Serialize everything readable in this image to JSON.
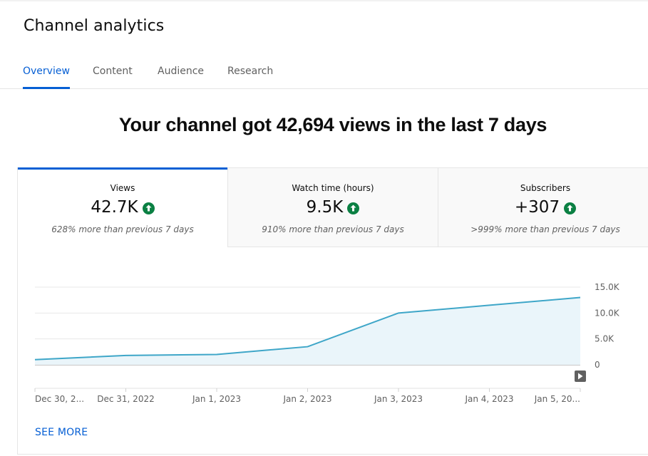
{
  "page": {
    "title": "Channel analytics"
  },
  "tabs": [
    {
      "label": "Overview",
      "active": true
    },
    {
      "label": "Content",
      "active": false
    },
    {
      "label": "Audience",
      "active": false
    },
    {
      "label": "Research",
      "active": false
    }
  ],
  "headline": "Your channel got 42,694 views in the last 7 days",
  "metrics": [
    {
      "label": "Views",
      "value": "42.7K",
      "change": "628% more than previous 7 days",
      "trend": "up",
      "active": true
    },
    {
      "label": "Watch time (hours)",
      "value": "9.5K",
      "change": "910% more than previous 7 days",
      "trend": "up",
      "active": false
    },
    {
      "label": "Subscribers",
      "value": "+307",
      "change": ">999% more than previous 7 days",
      "trend": "up",
      "active": false
    }
  ],
  "chart_data": {
    "type": "area",
    "x": [
      "Dec 30, 2...",
      "Dec 31, 2022",
      "Jan 1, 2023",
      "Jan 2, 2023",
      "Jan 3, 2023",
      "Jan 4, 2023",
      "Jan 5, 20..."
    ],
    "series": [
      {
        "values": [
          1000,
          1800,
          2000,
          3500,
          10000,
          11500,
          13000
        ]
      }
    ],
    "yticks": [
      {
        "value": 15000,
        "label": "15.0K"
      },
      {
        "value": 10000,
        "label": "10.0K"
      },
      {
        "value": 5000,
        "label": "5.0K"
      },
      {
        "value": 0,
        "label": "0"
      }
    ],
    "ylim": [
      0,
      15000
    ],
    "grid": true,
    "colors": {
      "line": "#3ea6c8",
      "fill": "#eaf5fa"
    }
  },
  "actions": {
    "see_more": "SEE MORE"
  },
  "icons": {
    "trend_up": "arrow-up-circle-icon",
    "play": "play-icon"
  },
  "colors": {
    "accent": "#065fd4",
    "positive": "#0b8043"
  }
}
